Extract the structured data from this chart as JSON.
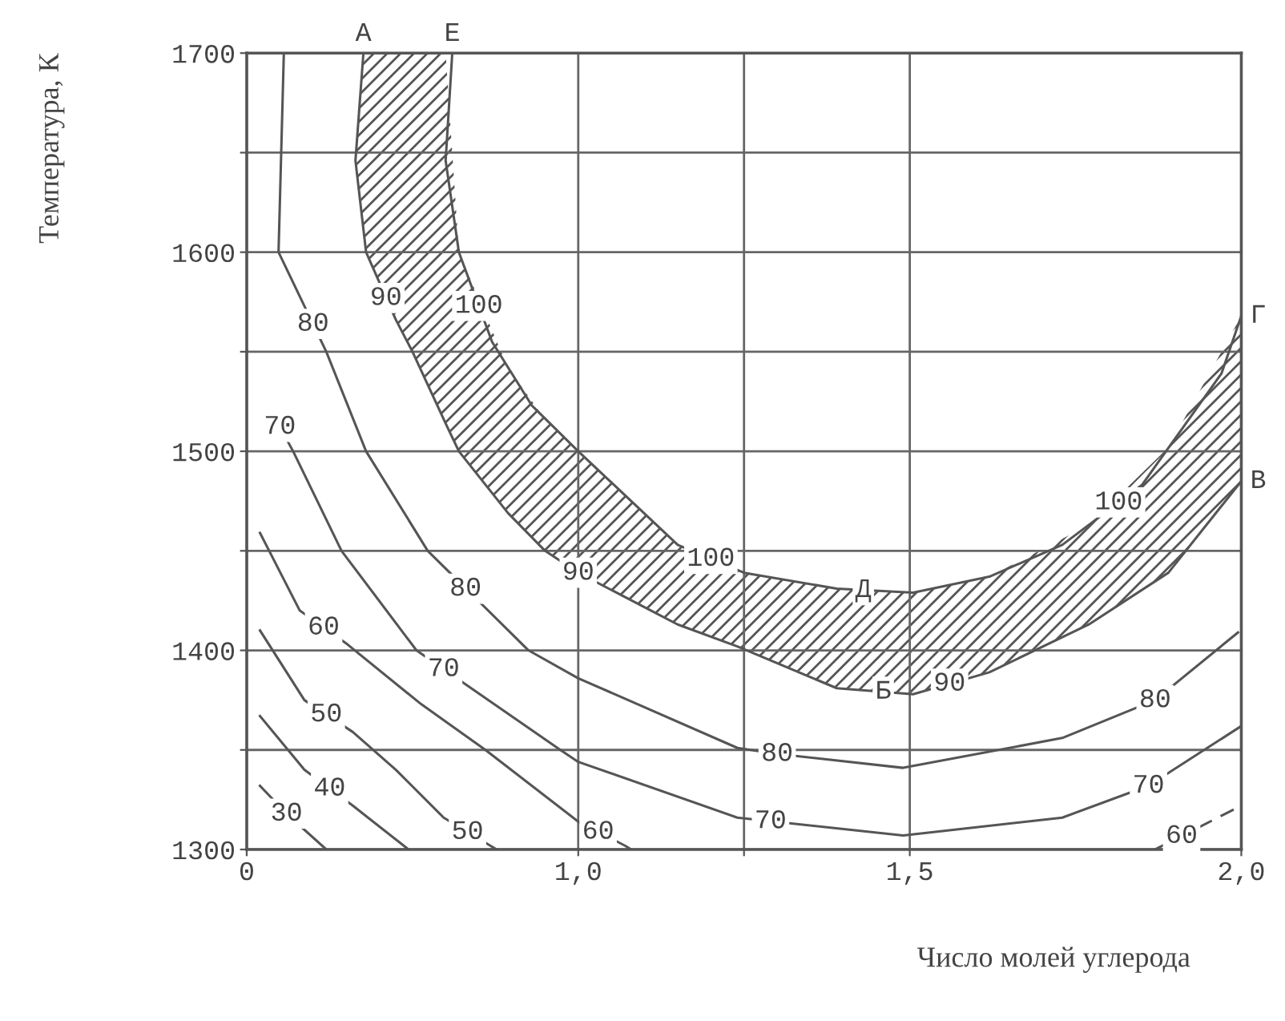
{
  "chart_data": {
    "type": "line",
    "xlabel": "Число молей углерода",
    "ylabel": "Температура, К",
    "xlim": [
      0.5,
      2.0
    ],
    "ylim": [
      1300,
      1700
    ],
    "xticks": [
      {
        "value": 0.5,
        "label": "0"
      },
      {
        "value": 1.0,
        "label": "1,0"
      },
      {
        "value": 1.25,
        "label": null
      },
      {
        "value": 1.5,
        "label": "1,5"
      },
      {
        "value": 2.0,
        "label": "2,0"
      }
    ],
    "yticks": [
      1300,
      {
        "value": 1350,
        "label": null
      },
      1400,
      {
        "value": 1450,
        "label": null
      },
      1500,
      {
        "value": 1550,
        "label": null
      },
      1600,
      {
        "value": 1650,
        "label": null
      },
      1700
    ],
    "grid": true,
    "legend": false,
    "series": [
      {
        "color": "#555555",
        "line_style": "solid",
        "x": [
          0.556,
          0.548,
          0.62,
          0.68,
          0.773,
          0.925,
          1.0,
          1.24,
          1.3,
          1.49,
          1.73,
          1.87,
          1.995
        ],
        "values": [
          1700,
          1600,
          1550,
          1500,
          1450,
          1400,
          1386,
          1351,
          1348,
          1341,
          1356,
          1375,
          1409
        ]
      },
      {
        "color": "#555555",
        "line_style": "solid",
        "x": [
          0.539,
          0.57,
          0.643,
          0.756,
          0.973,
          1.0,
          1.24,
          1.49,
          1.73,
          1.86,
          2.0
        ],
        "values": [
          1519,
          1500,
          1450,
          1400,
          1350,
          1344,
          1316,
          1307,
          1316,
          1332,
          1362
        ]
      },
      {
        "color": "#555555",
        "line_style": "solid",
        "x": [
          0.52,
          0.58,
          0.652,
          0.763,
          0.86,
          1.0,
          1.07,
          1.08
        ],
        "values": [
          1459,
          1420,
          1403,
          1373,
          1350,
          1314,
          1302,
          1300
        ]
      },
      {
        "color": "#555555",
        "line_style": "dashed",
        "x": [
          1.87,
          2.0
        ],
        "values": [
          1300,
          1322
        ]
      },
      {
        "color": "#555555",
        "line_style": "solid",
        "x": [
          0.52,
          0.587,
          0.66,
          0.725,
          0.797,
          0.877
        ],
        "values": [
          1410,
          1375,
          1359,
          1340,
          1316,
          1300
        ]
      },
      {
        "color": "#555555",
        "line_style": "solid",
        "x": [
          0.52,
          0.587,
          0.66,
          0.744
        ],
        "values": [
          1367,
          1340,
          1322,
          1300
        ]
      },
      {
        "color": "#555555",
        "line_style": "solid",
        "x": [
          0.52,
          0.56,
          0.62
        ],
        "values": [
          1332,
          1318,
          1300
        ]
      },
      {
        "color": "#555555",
        "line_style": "solid",
        "x": [
          0.676,
          0.664,
          0.68,
          0.725,
          0.75,
          0.8,
          0.82,
          0.894,
          0.95,
          1.0,
          1.15,
          1.24,
          1.39,
          1.505,
          1.62,
          1.77,
          1.89,
          2.0
        ],
        "values": [
          1700,
          1646,
          1600,
          1566,
          1550,
          1514,
          1500,
          1469,
          1450,
          1439,
          1413,
          1402,
          1381,
          1378,
          1389,
          1413,
          1439,
          1485
        ],
        "lower": [
          1700,
          1646,
          1600,
          1566,
          1550,
          1514,
          1500,
          1469,
          1450,
          1439,
          1413,
          1402,
          1381,
          1378,
          1389,
          1413,
          1439,
          1485
        ],
        "upper": [
          1700,
          1700,
          1700,
          1700,
          1700,
          1700,
          1600,
          1542,
          1516,
          1500,
          1453,
          1440,
          1431,
          1429,
          1437,
          1463,
          1502,
          1568
        ]
      },
      {
        "color": "#555555",
        "line_style": "solid",
        "x": [
          0.81,
          0.8,
          0.82,
          0.87,
          0.93,
          1.0,
          1.15,
          1.25,
          1.39,
          1.505,
          1.62,
          1.73,
          1.85,
          1.97,
          2.0
        ],
        "values": [
          1700,
          1646,
          1600,
          1555,
          1523,
          1500,
          1453,
          1439,
          1431,
          1429,
          1437,
          1453,
          1483,
          1539,
          1568
        ]
      }
    ],
    "annotations": [
      {
        "text": "80",
        "x": 0.6,
        "y": 1564
      },
      {
        "text": "90",
        "x": 0.71,
        "y": 1577
      },
      {
        "text": "100",
        "x": 0.85,
        "y": 1573
      },
      {
        "text": "70",
        "x": 0.55,
        "y": 1512.3
      },
      {
        "text": "80",
        "x": 0.83,
        "y": 1431
      },
      {
        "text": "90",
        "x": 1.0,
        "y": 1439
      },
      {
        "text": "100",
        "x": 1.2,
        "y": 1446
      },
      {
        "text": "60",
        "x": 0.616,
        "y": 1411.5
      },
      {
        "text": "70",
        "x": 0.797,
        "y": 1390.6
      },
      {
        "text": "50",
        "x": 0.62,
        "y": 1367.8
      },
      {
        "text": "40",
        "x": 0.625,
        "y": 1330.6
      },
      {
        "text": "30",
        "x": 0.56,
        "y": 1318
      },
      {
        "text": "50",
        "x": 0.833,
        "y": 1308.8
      },
      {
        "text": "60",
        "x": 1.03,
        "y": 1308.9
      },
      {
        "text": "80",
        "x": 1.3,
        "y": 1348
      },
      {
        "text": "70",
        "x": 1.29,
        "y": 1314.2
      },
      {
        "text": "90",
        "x": 1.56,
        "y": 1383.3
      },
      {
        "text": "100",
        "x": 1.815,
        "y": 1474.3
      },
      {
        "text": "80",
        "x": 1.87,
        "y": 1375
      },
      {
        "text": "70",
        "x": 1.86,
        "y": 1332
      },
      {
        "text": "60",
        "x": 1.91,
        "y": 1306.8
      },
      {
        "text": "А",
        "x": 0.676,
        "y": 1700
      },
      {
        "text": "Е",
        "x": 0.81,
        "y": 1700
      },
      {
        "text": "Г",
        "x": 2.0,
        "y": 1568
      },
      {
        "text": "В",
        "x": 2.0,
        "y": 1485
      },
      {
        "text": "Д",
        "x": 1.43,
        "y": 1430.3
      },
      {
        "text": "Б",
        "x": 1.46,
        "y": 1379.2
      }
    ]
  }
}
